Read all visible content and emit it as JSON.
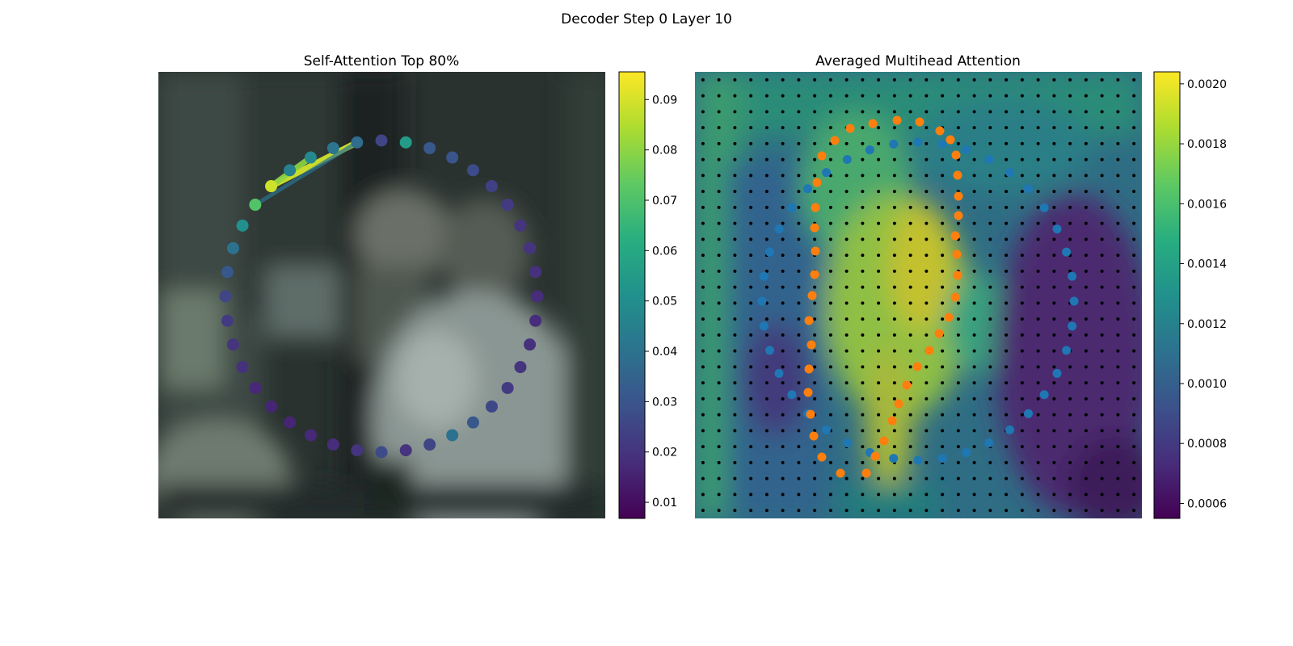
{
  "figure": {
    "suptitle": "Decoder Step 0 Layer 10"
  },
  "chart_data": [
    {
      "type": "scatter",
      "title": "Self-Attention Top 80%",
      "background": "blurred photo frame",
      "colormap": "viridis",
      "colorbar": {
        "ticks": [
          "0.01",
          "0.02",
          "0.03",
          "0.04",
          "0.05",
          "0.06",
          "0.07",
          "0.08",
          "0.09"
        ],
        "range": [
          0.0068,
          0.0955
        ]
      },
      "ring_point_count": 40,
      "ring_values": [
        0.025,
        0.055,
        0.031,
        0.03,
        0.027,
        0.024,
        0.022,
        0.02,
        0.02,
        0.019,
        0.018,
        0.018,
        0.019,
        0.02,
        0.022,
        0.026,
        0.031,
        0.04,
        0.025,
        0.02,
        0.027,
        0.02,
        0.018,
        0.017,
        0.016,
        0.016,
        0.017,
        0.019,
        0.02,
        0.022,
        0.025,
        0.031,
        0.04,
        0.051,
        0.071,
        0.089,
        0.045,
        0.048,
        0.041,
        0.038
      ],
      "attention_edges": [
        {
          "from": 35,
          "to": 39,
          "weight": 0.089
        },
        {
          "from": 35,
          "to": 37,
          "weight": 0.08
        },
        {
          "from": 34,
          "to": 39,
          "weight": 0.04
        }
      ]
    },
    {
      "type": "heatmap",
      "title": "Averaged Multihead Attention",
      "colormap": "viridis",
      "colorbar": {
        "ticks": [
          "0.0006",
          "0.0008",
          "0.0010",
          "0.0012",
          "0.0014",
          "0.0016",
          "0.0018",
          "0.0020"
        ],
        "range": [
          0.00055,
          0.00204
        ]
      },
      "grid": {
        "rows": 28,
        "cols": 28
      },
      "series": [
        {
          "color": "#1f77b4",
          "marker": "dot"
        },
        {
          "color": "#ff7f0e",
          "marker": "dot"
        }
      ]
    }
  ]
}
